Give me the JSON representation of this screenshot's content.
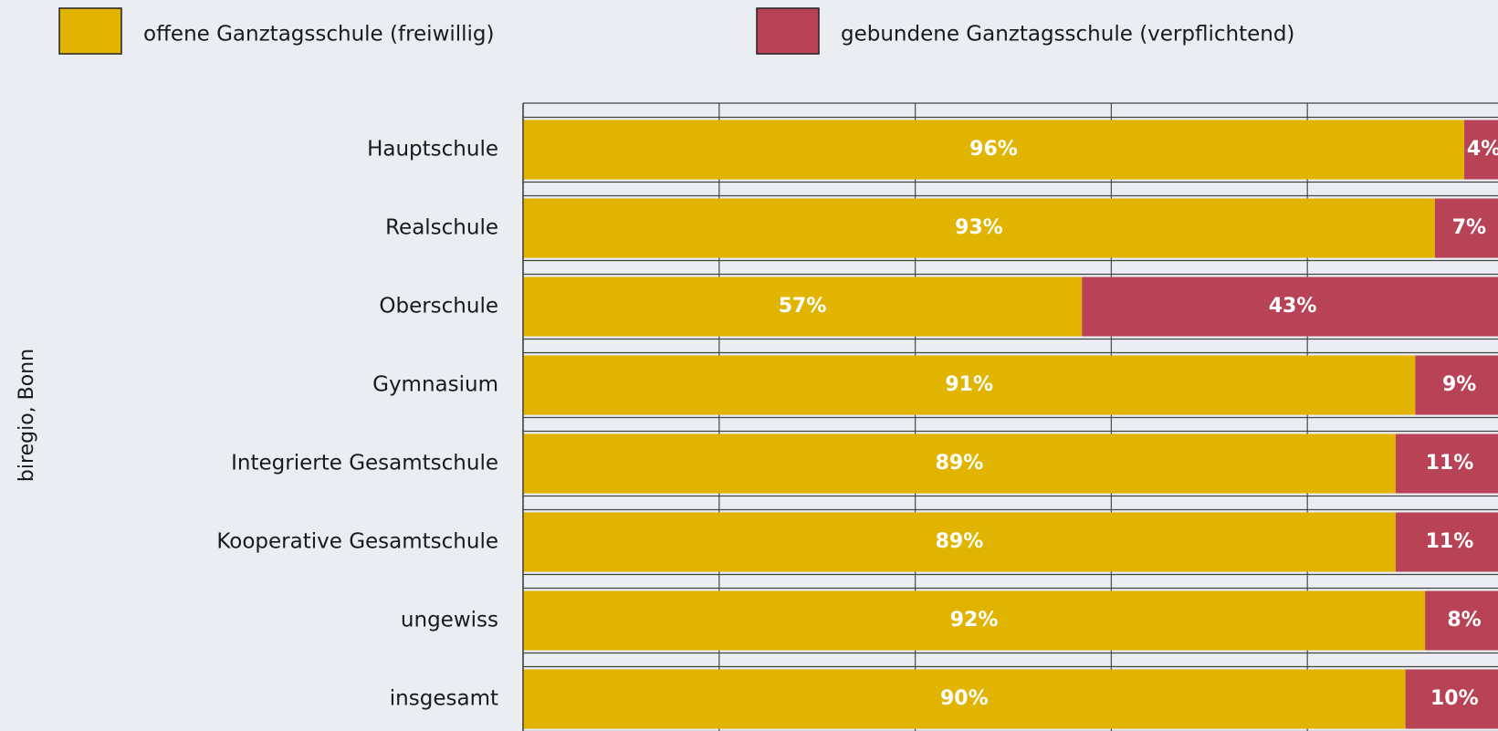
{
  "chart_data": {
    "type": "stacked_barh",
    "credit": "biregio, Bonn",
    "categories": [
      "Hauptschule",
      "Realschule",
      "Oberschule",
      "Gymnasium",
      "Integrierte Gesamtschule",
      "Kooperative Gesamtschule",
      "ungewiss",
      "insgesamt"
    ],
    "series": [
      {
        "name": "offene Ganztagsschule (freiwillig)",
        "color": "#e0b400",
        "values": [
          96,
          93,
          57,
          91,
          89,
          89,
          92,
          90
        ],
        "value_labels": [
          "96%",
          "93%",
          "57%",
          "91%",
          "89%",
          "89%",
          "92%",
          "90%"
        ]
      },
      {
        "name": "gebundene Ganztagsschule  (verpflichtend)",
        "color": "#b94356",
        "values": [
          4,
          7,
          43,
          9,
          11,
          11,
          8,
          10
        ],
        "value_labels": [
          "4%",
          "7%",
          "43%",
          "9%",
          "11%",
          "11%",
          "8%",
          "10%"
        ]
      }
    ],
    "xlim": [
      0,
      100
    ],
    "xticks": [
      0,
      20,
      40,
      60,
      80,
      100
    ],
    "grid": true,
    "legend": "top"
  }
}
